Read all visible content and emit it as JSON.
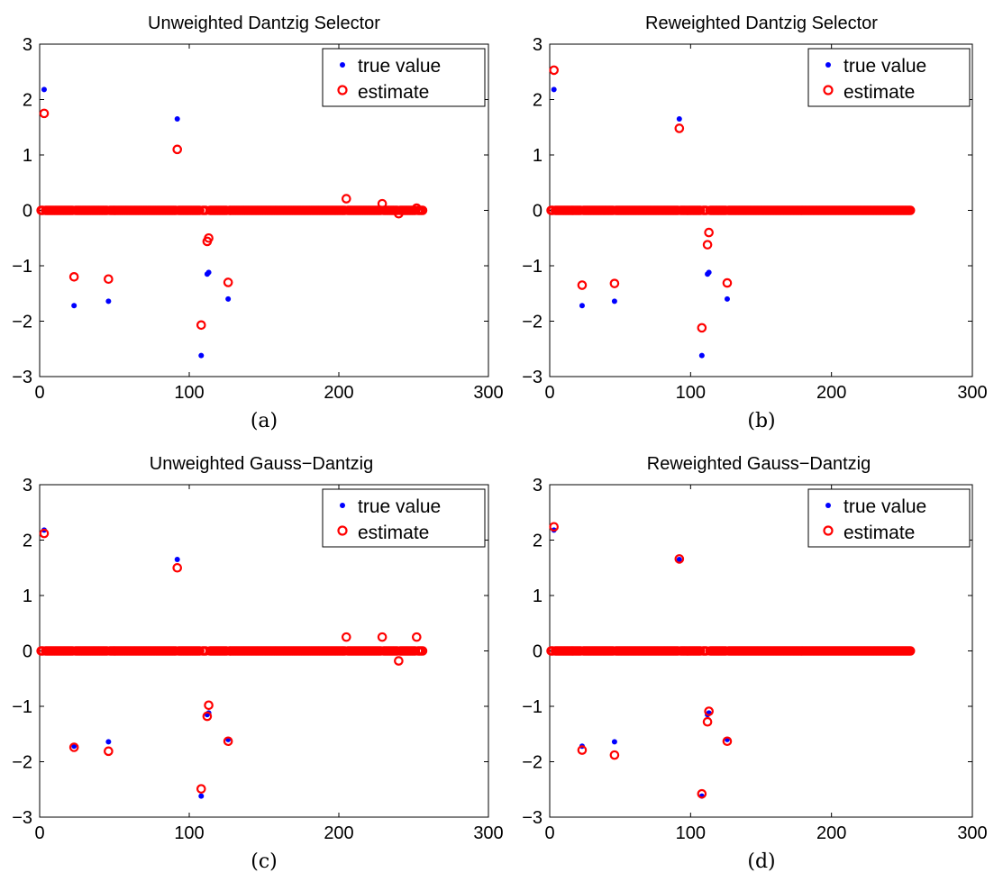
{
  "figure": {
    "colors": {
      "true_value": "#0000ff",
      "estimate": "#ff0000",
      "axes": "#000000",
      "background": "#ffffff"
    },
    "x_zero_run": {
      "from": 1,
      "to": 256,
      "step": 1,
      "y": 0,
      "note_series": "estimate"
    }
  },
  "chart_data": [
    {
      "type": "scatter",
      "title": "Unweighted Dantzig Selector",
      "caption": "(a)",
      "xlabel": "",
      "ylabel": "",
      "xlim": [
        0,
        300
      ],
      "ylim": [
        -3,
        3
      ],
      "xticks": [
        0,
        100,
        200,
        300
      ],
      "yticks": [
        -3,
        -2,
        -1,
        0,
        1,
        2,
        3
      ],
      "legend": {
        "position": "top-right",
        "entries": [
          "true value",
          "estimate"
        ]
      },
      "series": [
        {
          "name": "true value",
          "marker": "dot",
          "points": [
            [
              3,
              2.18
            ],
            [
              23,
              -1.72
            ],
            [
              46,
              -1.64
            ],
            [
              92,
              1.65
            ],
            [
              108,
              -2.62
            ],
            [
              112,
              -1.15
            ],
            [
              113,
              -1.12
            ],
            [
              126,
              -1.6
            ]
          ]
        },
        {
          "name": "estimate",
          "marker": "circle",
          "points": [
            [
              3,
              1.75
            ],
            [
              23,
              -1.2
            ],
            [
              46,
              -1.24
            ],
            [
              92,
              1.1
            ],
            [
              108,
              -2.07
            ],
            [
              112,
              -0.56
            ],
            [
              113,
              -0.5
            ],
            [
              126,
              -1.3
            ],
            [
              205,
              0.21
            ],
            [
              229,
              0.12
            ],
            [
              240,
              -0.06
            ],
            [
              252,
              0.04
            ]
          ]
        }
      ]
    },
    {
      "type": "scatter",
      "title": "Reweighted Dantzig Selector",
      "caption": "(b)",
      "xlabel": "",
      "ylabel": "",
      "xlim": [
        0,
        300
      ],
      "ylim": [
        -3,
        3
      ],
      "xticks": [
        0,
        100,
        200,
        300
      ],
      "yticks": [
        -3,
        -2,
        -1,
        0,
        1,
        2,
        3
      ],
      "legend": {
        "position": "top-right",
        "entries": [
          "true value",
          "estimate"
        ]
      },
      "series": [
        {
          "name": "true value",
          "marker": "dot",
          "points": [
            [
              3,
              2.18
            ],
            [
              23,
              -1.72
            ],
            [
              46,
              -1.64
            ],
            [
              92,
              1.65
            ],
            [
              108,
              -2.62
            ],
            [
              112,
              -1.15
            ],
            [
              113,
              -1.12
            ],
            [
              126,
              -1.6
            ]
          ]
        },
        {
          "name": "estimate",
          "marker": "circle",
          "points": [
            [
              3,
              2.53
            ],
            [
              23,
              -1.35
            ],
            [
              46,
              -1.32
            ],
            [
              92,
              1.48
            ],
            [
              108,
              -2.12
            ],
            [
              112,
              -0.62
            ],
            [
              113,
              -0.4
            ],
            [
              126,
              -1.31
            ]
          ]
        }
      ]
    },
    {
      "type": "scatter",
      "title": "Unweighted Gauss−Dantzig",
      "caption": "(c)",
      "xlabel": "",
      "ylabel": "",
      "xlim": [
        0,
        300
      ],
      "ylim": [
        -3,
        3
      ],
      "xticks": [
        0,
        100,
        200,
        300
      ],
      "yticks": [
        -3,
        -2,
        -1,
        0,
        1,
        2,
        3
      ],
      "legend": {
        "position": "top-right",
        "entries": [
          "true value",
          "estimate"
        ]
      },
      "series": [
        {
          "name": "true value",
          "marker": "dot",
          "points": [
            [
              3,
              2.18
            ],
            [
              23,
              -1.72
            ],
            [
              46,
              -1.64
            ],
            [
              92,
              1.65
            ],
            [
              108,
              -2.62
            ],
            [
              112,
              -1.15
            ],
            [
              113,
              -1.12
            ],
            [
              126,
              -1.6
            ]
          ]
        },
        {
          "name": "estimate",
          "marker": "circle",
          "points": [
            [
              3,
              2.12
            ],
            [
              23,
              -1.74
            ],
            [
              46,
              -1.81
            ],
            [
              92,
              1.5
            ],
            [
              108,
              -2.49
            ],
            [
              112,
              -1.18
            ],
            [
              113,
              -0.98
            ],
            [
              126,
              -1.63
            ],
            [
              205,
              0.25
            ],
            [
              229,
              0.25
            ],
            [
              240,
              -0.18
            ],
            [
              252,
              0.25
            ]
          ]
        }
      ]
    },
    {
      "type": "scatter",
      "title": "Reweighted Gauss−Dantzig",
      "caption": "(d)",
      "xlabel": "",
      "ylabel": "",
      "xlim": [
        0,
        300
      ],
      "ylim": [
        -3,
        3
      ],
      "xticks": [
        0,
        100,
        200,
        300
      ],
      "yticks": [
        -3,
        -2,
        -1,
        0,
        1,
        2,
        3
      ],
      "legend": {
        "position": "top-right",
        "entries": [
          "true value",
          "estimate"
        ]
      },
      "series": [
        {
          "name": "true value",
          "marker": "dot",
          "points": [
            [
              3,
              2.18
            ],
            [
              23,
              -1.72
            ],
            [
              46,
              -1.64
            ],
            [
              92,
              1.65
            ],
            [
              108,
              -2.62
            ],
            [
              112,
              -1.15
            ],
            [
              113,
              -1.12
            ],
            [
              126,
              -1.6
            ]
          ]
        },
        {
          "name": "estimate",
          "marker": "circle",
          "points": [
            [
              3,
              2.24
            ],
            [
              23,
              -1.79
            ],
            [
              46,
              -1.88
            ],
            [
              92,
              1.66
            ],
            [
              108,
              -2.58
            ],
            [
              112,
              -1.28
            ],
            [
              113,
              -1.09
            ],
            [
              126,
              -1.63
            ]
          ]
        }
      ]
    }
  ]
}
